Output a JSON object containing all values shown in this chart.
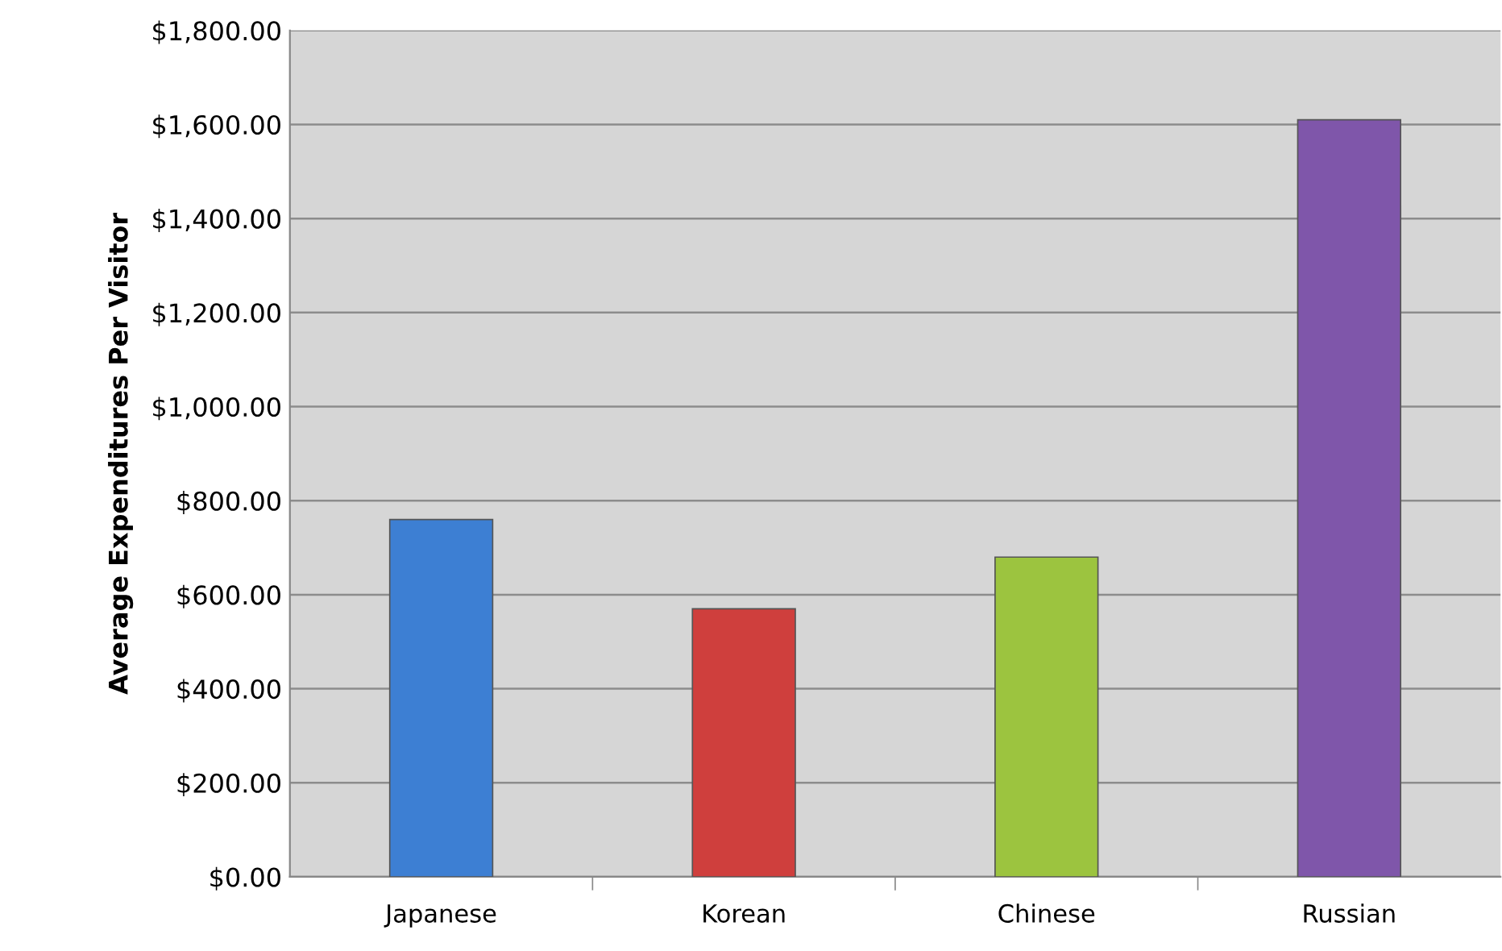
{
  "chart_data": {
    "type": "bar",
    "ylabel": "Average Expenditures Per Visitor",
    "categories": [
      "Japanese",
      "Korean",
      "Chinese",
      "Russian"
    ],
    "values": [
      760,
      570,
      680,
      1610
    ],
    "colors": [
      "#3d7fd3",
      "#cf3f3d",
      "#9cc43f",
      "#7f56aa"
    ],
    "ylim": [
      0,
      1800
    ],
    "yticks": [
      {
        "value": 0,
        "label": "$0.00"
      },
      {
        "value": 200,
        "label": "$200.00"
      },
      {
        "value": 400,
        "label": "$400.00"
      },
      {
        "value": 600,
        "label": "$600.00"
      },
      {
        "value": 800,
        "label": "$800.00"
      },
      {
        "value": 1000,
        "label": "$1,000.00"
      },
      {
        "value": 1200,
        "label": "$1,200.00"
      },
      {
        "value": 1400,
        "label": "$1,400.00"
      },
      {
        "value": 1600,
        "label": "$1,600.00"
      },
      {
        "value": 1800,
        "label": "$1,800.00"
      }
    ],
    "grid": "y"
  }
}
